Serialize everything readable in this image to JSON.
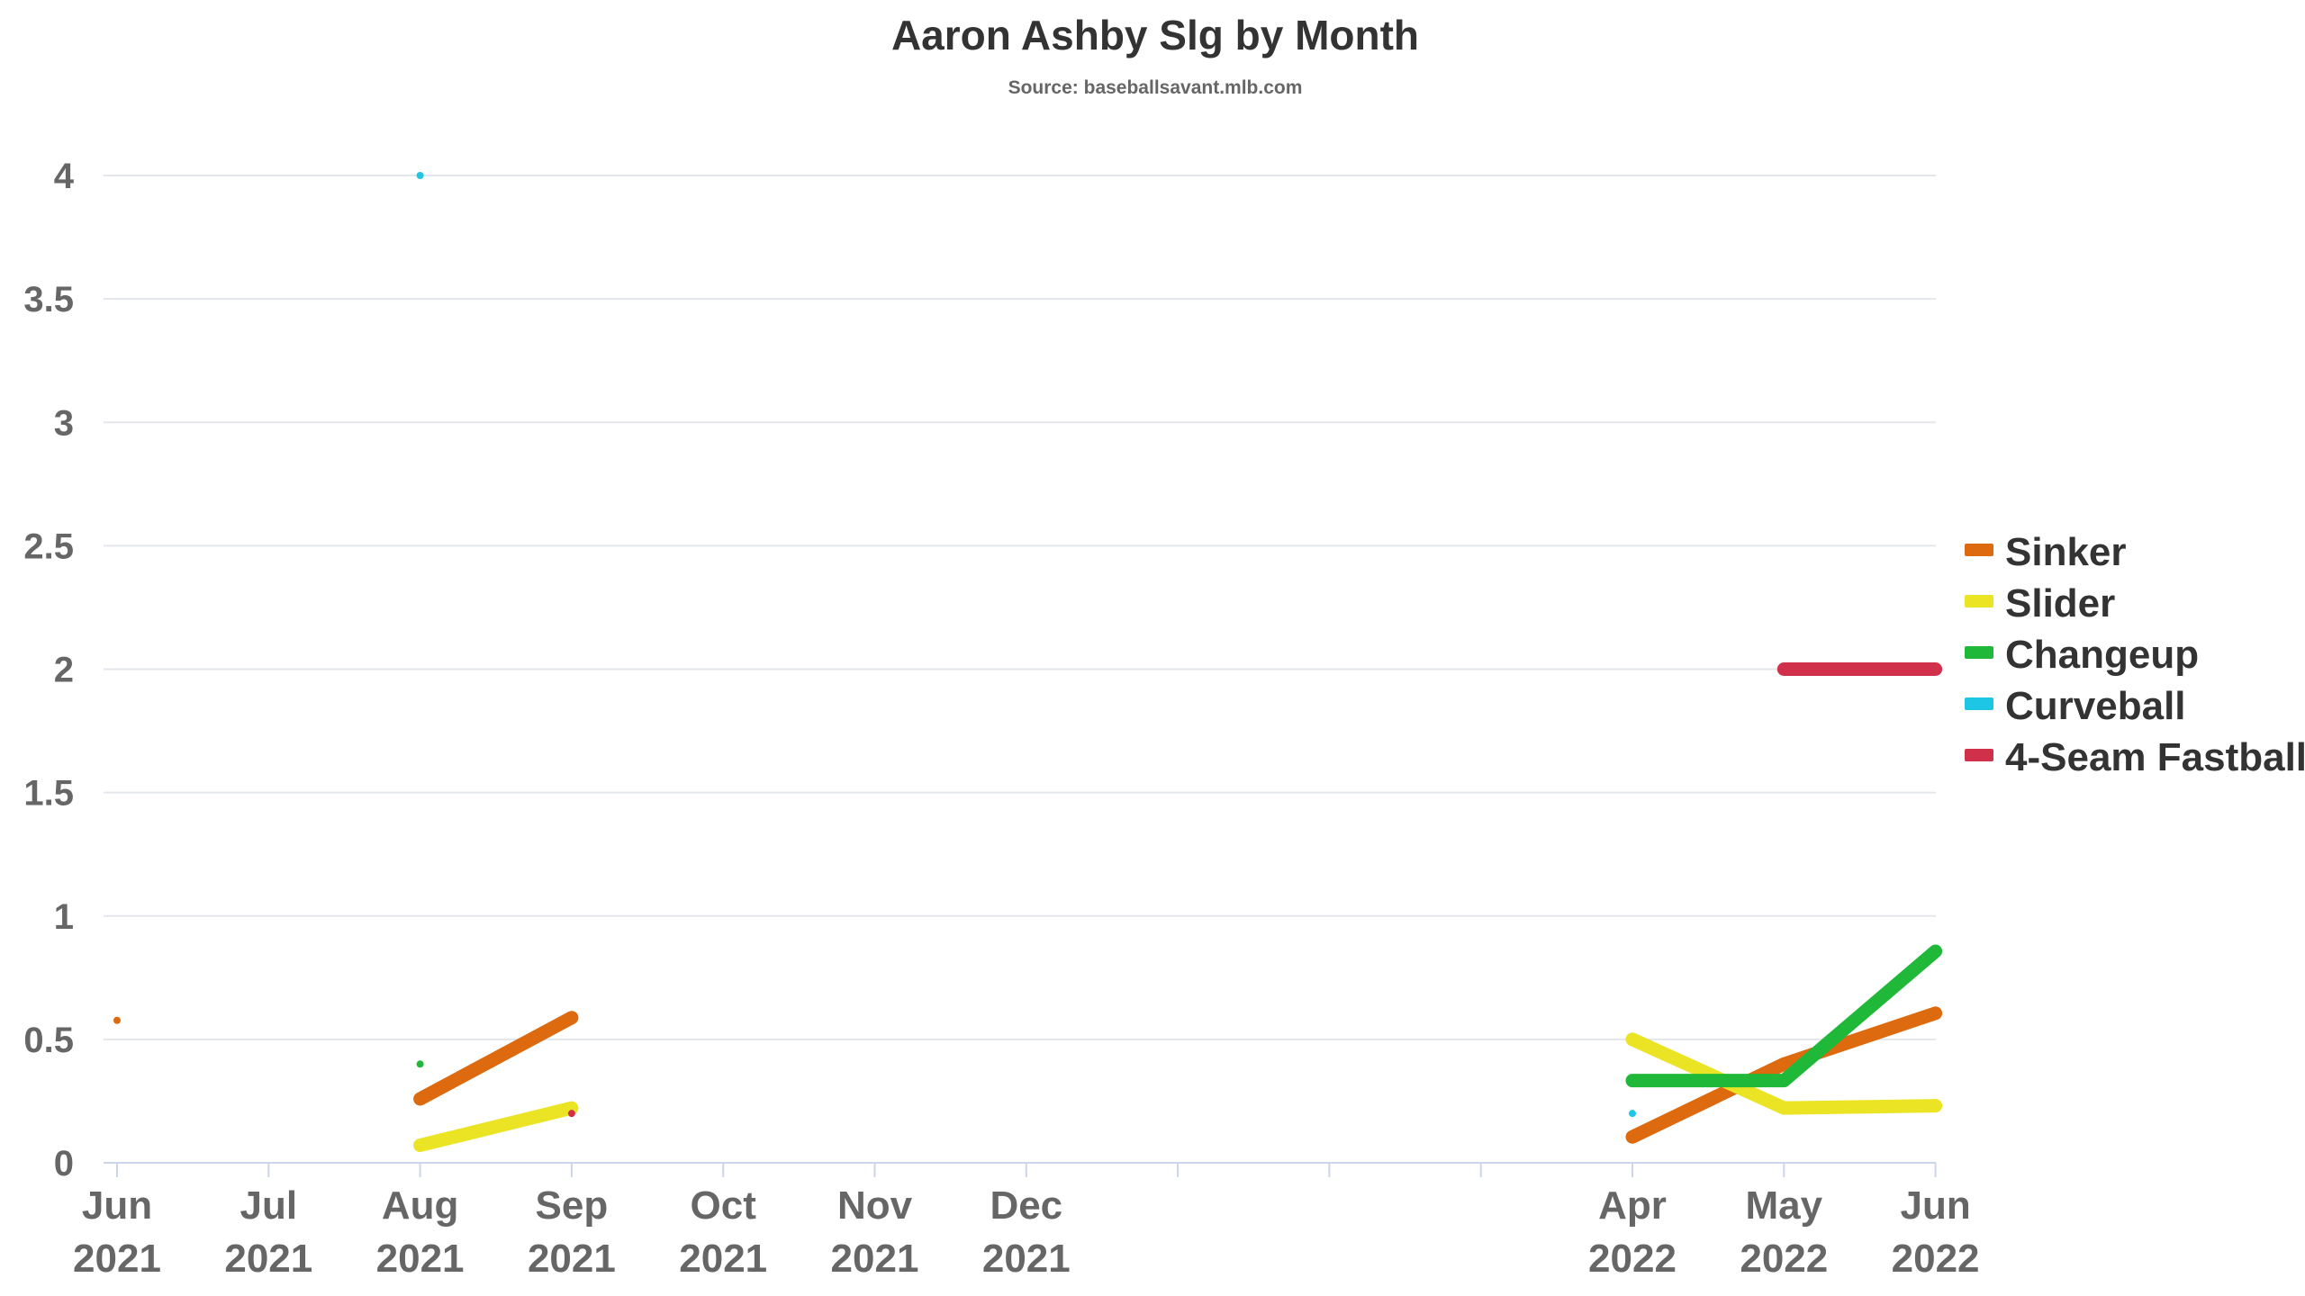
{
  "chart_data": {
    "type": "line",
    "title": "Aaron Ashby Slg by Month",
    "subtitle": "Source: baseballsavant.mlb.com",
    "xlabel": "",
    "ylabel": "",
    "ylim": [
      0,
      4
    ],
    "yticks": [
      "0",
      "0.5",
      "1",
      "1.5",
      "2",
      "2.5",
      "3",
      "3.5",
      "4"
    ],
    "grid": true,
    "legend_position": "right",
    "xticks": [
      {
        "month": "2021-06",
        "line1": "Jun",
        "line2": "2021"
      },
      {
        "month": "2021-07",
        "line1": "Jul",
        "line2": "2021"
      },
      {
        "month": "2021-08",
        "line1": "Aug",
        "line2": "2021"
      },
      {
        "month": "2021-09",
        "line1": "Sep",
        "line2": "2021"
      },
      {
        "month": "2021-10",
        "line1": "Oct",
        "line2": "2021"
      },
      {
        "month": "2021-11",
        "line1": "Nov",
        "line2": "2021"
      },
      {
        "month": "2021-12",
        "line1": "Dec",
        "line2": "2021"
      },
      {
        "month": "2022-01",
        "line1": "",
        "line2": ""
      },
      {
        "month": "2022-02",
        "line1": "",
        "line2": ""
      },
      {
        "month": "2022-03",
        "line1": "",
        "line2": ""
      },
      {
        "month": "2022-04",
        "line1": "Apr",
        "line2": "2022"
      },
      {
        "month": "2022-05",
        "line1": "May",
        "line2": "2022"
      },
      {
        "month": "2022-06",
        "line1": "Jun",
        "line2": "2022"
      }
    ],
    "series": [
      {
        "name": "Sinker",
        "color": "#dd6a0e",
        "points": [
          {
            "x": "2021-06",
            "y": 0.577
          },
          {
            "x": "2021-08",
            "y": 0.259
          },
          {
            "x": "2021-09",
            "y": 0.588
          },
          {
            "x": "2022-04",
            "y": 0.105
          },
          {
            "x": "2022-05",
            "y": 0.4
          },
          {
            "x": "2022-06",
            "y": 0.606
          }
        ]
      },
      {
        "name": "Slider",
        "color": "#ebe424",
        "points": [
          {
            "x": "2021-08",
            "y": 0.071
          },
          {
            "x": "2021-09",
            "y": 0.222
          },
          {
            "x": "2022-04",
            "y": 0.5
          },
          {
            "x": "2022-05",
            "y": 0.222
          },
          {
            "x": "2022-06",
            "y": 0.231
          }
        ]
      },
      {
        "name": "Changeup",
        "color": "#20b838",
        "points": [
          {
            "x": "2021-08",
            "y": 0.4
          },
          {
            "x": "2022-04",
            "y": 0.333
          },
          {
            "x": "2022-05",
            "y": 0.333
          },
          {
            "x": "2022-06",
            "y": 0.857
          }
        ]
      },
      {
        "name": "Curveball",
        "color": "#1cc6e4",
        "points": [
          {
            "x": "2021-08",
            "y": 4.0
          },
          {
            "x": "2022-04",
            "y": 0.2
          }
        ]
      },
      {
        "name": "4-Seam Fastball",
        "color": "#d0304a",
        "points": [
          {
            "x": "2021-09",
            "y": 0.2
          },
          {
            "x": "2022-05",
            "y": 2.0
          },
          {
            "x": "2022-06",
            "y": 2.0
          }
        ]
      }
    ]
  }
}
